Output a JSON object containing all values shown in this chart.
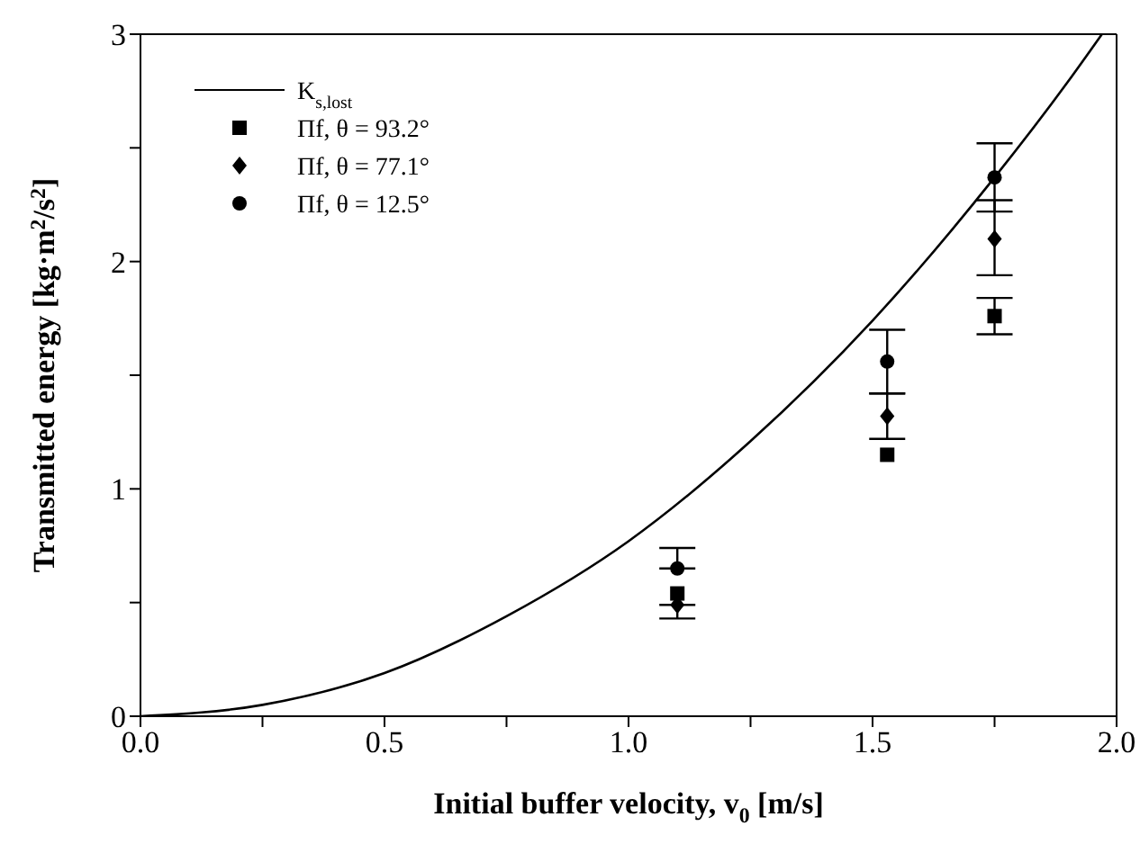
{
  "chart_data": {
    "type": "scatter",
    "xlabel": "Initial buffer velocity, v$_{0}$ [m/s]",
    "ylabel": "Transmitted energy [kg·m$^{2}$/s$^{2}$]",
    "xlim": [
      0,
      2
    ],
    "xticks": [
      {
        "value": 0,
        "label": "0.0"
      },
      {
        "value": 0.25,
        "label": null
      },
      {
        "value": 0.5,
        "label": "0.5"
      },
      {
        "value": 0.75,
        "label": null
      },
      {
        "value": 1,
        "label": "1.0"
      },
      {
        "value": 1.25,
        "label": null
      },
      {
        "value": 1.5,
        "label": "1.5"
      },
      {
        "value": 1.75,
        "label": null
      },
      {
        "value": 2,
        "label": "2.0"
      }
    ],
    "ylim": [
      0,
      3
    ],
    "yticks": [
      0,
      {
        "value": 0.5,
        "label": null
      },
      1,
      {
        "value": 1.5,
        "label": null
      },
      2,
      {
        "value": 2.5,
        "label": null
      },
      3
    ],
    "grid": false,
    "legend": "top left",
    "series": [
      {
        "name": "K$_{s,lost}$",
        "type": "line",
        "color": "#000000",
        "marker": "none",
        "line_style": "solid",
        "x": [
          0,
          0.25,
          0.5,
          0.75,
          1,
          1.25,
          1.5,
          1.75,
          1.9,
          1.97
        ],
        "values": [
          0,
          0.05,
          0.19,
          0.44,
          0.77,
          1.21,
          1.74,
          2.37,
          2.79,
          3.0
        ]
      },
      {
        "name": "Πf, θ = 93.2°",
        "color": "#000000",
        "marker": "square",
        "x": [
          1.1,
          1.53,
          1.75
        ],
        "values": [
          0.54,
          1.15,
          1.76
        ],
        "errors": [
          null,
          null,
          [
            1.68,
            1.84
          ]
        ]
      },
      {
        "name": "Πf, θ = 77.1°",
        "color": "#000000",
        "marker": "diamond",
        "x": [
          1.1,
          1.53,
          1.75
        ],
        "values": [
          0.49,
          1.32,
          2.1
        ],
        "errors": [
          [
            0.43,
            0.49
          ],
          [
            1.22,
            1.42
          ],
          [
            1.94,
            2.27
          ]
        ]
      },
      {
        "name": "Πf, θ = 12.5°",
        "color": "#000000",
        "marker": "circle",
        "x": [
          1.1,
          1.53,
          1.75
        ],
        "values": [
          0.65,
          1.56,
          2.37
        ],
        "errors": [
          [
            0.65,
            0.74
          ],
          [
            1.42,
            1.7
          ],
          [
            2.22,
            2.52
          ]
        ]
      }
    ]
  }
}
